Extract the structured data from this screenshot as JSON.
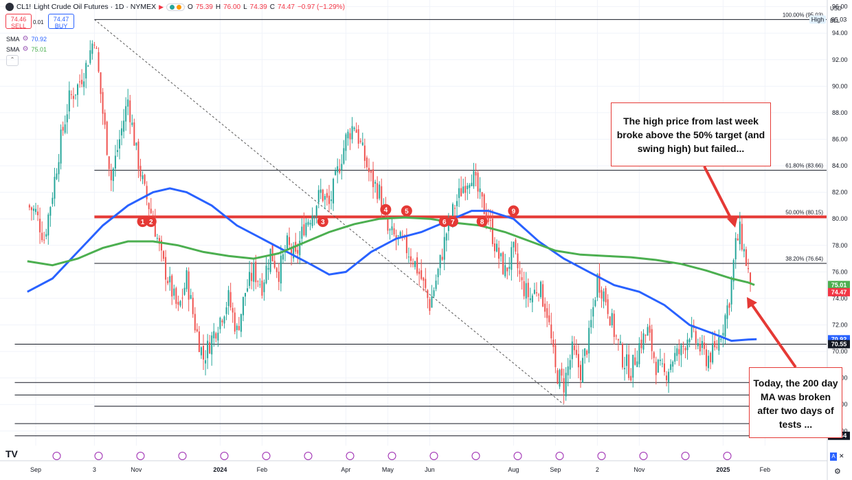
{
  "header": {
    "symbol": "CL1!",
    "title": "Light Crude Oil Futures · 1D · NYMEX",
    "open": "75.39",
    "high": "76.00",
    "low": "74.39",
    "close": "74.47",
    "change": "−0.97 (−1.29%)"
  },
  "trade": {
    "sell_price": "74.46",
    "sell_label": "SELL",
    "spread": "0.01",
    "buy_price": "74.47",
    "buy_label": "BUY"
  },
  "indicators": [
    {
      "label": "SMA",
      "value": "70.92",
      "color": "#2962ff"
    },
    {
      "label": "SMA",
      "value": "75.01",
      "color": "#4caf50"
    }
  ],
  "axis_currency": "USD",
  "axis_unit": "BLL",
  "callouts": {
    "high": "The high price from last week broke above the 50% target (and swing high) but failed...",
    "ma": "Today, the 200 day MA was broken after two days of tests ..."
  },
  "colors": {
    "red": "#e53935",
    "green_ma": "#4caf50",
    "blue_ma": "#2962ff",
    "up": "#26a69a",
    "down": "#ef5350",
    "price_tag": "#f23645"
  },
  "chart_data": {
    "type": "candlestick",
    "ylim": [
      62.9,
      96.5
    ],
    "y_ticks": [
      "96.00",
      "94.00",
      "92.00",
      "90.00",
      "88.00",
      "86.00",
      "84.00",
      "82.00",
      "80.00",
      "78.00",
      "76.00",
      "74.00",
      "72.00",
      "70.00",
      "68.00",
      "66.00",
      "64.00"
    ],
    "x_ticks": [
      {
        "label": "Sep",
        "month": 0
      },
      {
        "label": "3",
        "month": 1.4
      },
      {
        "label": "Nov",
        "month": 2.4
      },
      {
        "label": "2024",
        "month": 4.4
      },
      {
        "label": "Feb",
        "month": 5.4
      },
      {
        "label": "Apr",
        "month": 7.4
      },
      {
        "label": "May",
        "month": 8.4
      },
      {
        "label": "Jun",
        "month": 9.4
      },
      {
        "label": "Aug",
        "month": 11.4
      },
      {
        "label": "Sep",
        "month": 12.4
      },
      {
        "label": "2",
        "month": 13.4
      },
      {
        "label": "Nov",
        "month": 14.4
      },
      {
        "label": "2025",
        "month": 16.4
      },
      {
        "label": "Feb",
        "month": 17.4
      }
    ],
    "close_path": [
      {
        "m": -0.2,
        "v": 81.0
      },
      {
        "m": 0.0,
        "v": 80.5
      },
      {
        "m": 0.2,
        "v": 78.5
      },
      {
        "m": 0.4,
        "v": 82.0
      },
      {
        "m": 0.6,
        "v": 86.0
      },
      {
        "m": 0.8,
        "v": 89.0
      },
      {
        "m": 1.0,
        "v": 90.0
      },
      {
        "m": 1.2,
        "v": 91.5
      },
      {
        "m": 1.4,
        "v": 93.8
      },
      {
        "m": 1.6,
        "v": 88.0
      },
      {
        "m": 1.8,
        "v": 83.0
      },
      {
        "m": 2.0,
        "v": 86.0
      },
      {
        "m": 2.2,
        "v": 89.0
      },
      {
        "m": 2.4,
        "v": 85.0
      },
      {
        "m": 2.6,
        "v": 82.0
      },
      {
        "m": 2.8,
        "v": 80.0
      },
      {
        "m": 3.0,
        "v": 77.0
      },
      {
        "m": 3.2,
        "v": 75.0
      },
      {
        "m": 3.4,
        "v": 73.0
      },
      {
        "m": 3.6,
        "v": 75.5
      },
      {
        "m": 3.8,
        "v": 72.0
      },
      {
        "m": 4.0,
        "v": 69.5
      },
      {
        "m": 4.2,
        "v": 71.0
      },
      {
        "m": 4.4,
        "v": 72.5
      },
      {
        "m": 4.6,
        "v": 74.0
      },
      {
        "m": 4.8,
        "v": 71.5
      },
      {
        "m": 5.0,
        "v": 74.5
      },
      {
        "m": 5.2,
        "v": 76.0
      },
      {
        "m": 5.4,
        "v": 75.0
      },
      {
        "m": 5.6,
        "v": 77.5
      },
      {
        "m": 5.8,
        "v": 76.0
      },
      {
        "m": 6.0,
        "v": 78.0
      },
      {
        "m": 6.2,
        "v": 77.0
      },
      {
        "m": 6.4,
        "v": 79.5
      },
      {
        "m": 6.6,
        "v": 80.5
      },
      {
        "m": 6.8,
        "v": 82.0
      },
      {
        "m": 7.0,
        "v": 81.0
      },
      {
        "m": 7.2,
        "v": 83.5
      },
      {
        "m": 7.4,
        "v": 86.0
      },
      {
        "m": 7.6,
        "v": 87.2
      },
      {
        "m": 7.8,
        "v": 85.0
      },
      {
        "m": 8.0,
        "v": 83.0
      },
      {
        "m": 8.2,
        "v": 82.0
      },
      {
        "m": 8.4,
        "v": 79.0
      },
      {
        "m": 8.6,
        "v": 78.5
      },
      {
        "m": 8.8,
        "v": 78.0
      },
      {
        "m": 9.0,
        "v": 77.0
      },
      {
        "m": 9.2,
        "v": 75.5
      },
      {
        "m": 9.4,
        "v": 73.5
      },
      {
        "m": 9.6,
        "v": 76.0
      },
      {
        "m": 9.8,
        "v": 79.0
      },
      {
        "m": 10.0,
        "v": 81.0
      },
      {
        "m": 10.2,
        "v": 82.5
      },
      {
        "m": 10.4,
        "v": 83.5
      },
      {
        "m": 10.6,
        "v": 81.5
      },
      {
        "m": 10.8,
        "v": 80.0
      },
      {
        "m": 11.0,
        "v": 77.5
      },
      {
        "m": 11.2,
        "v": 76.0
      },
      {
        "m": 11.4,
        "v": 77.5
      },
      {
        "m": 11.6,
        "v": 75.0
      },
      {
        "m": 11.8,
        "v": 74.0
      },
      {
        "m": 12.0,
        "v": 75.0
      },
      {
        "m": 12.2,
        "v": 73.0
      },
      {
        "m": 12.4,
        "v": 68.5
      },
      {
        "m": 12.6,
        "v": 67.5
      },
      {
        "m": 12.8,
        "v": 70.0
      },
      {
        "m": 13.0,
        "v": 68.5
      },
      {
        "m": 13.2,
        "v": 71.0
      },
      {
        "m": 13.4,
        "v": 75.5
      },
      {
        "m": 13.6,
        "v": 74.0
      },
      {
        "m": 13.8,
        "v": 71.5
      },
      {
        "m": 14.0,
        "v": 69.5
      },
      {
        "m": 14.2,
        "v": 68.5
      },
      {
        "m": 14.4,
        "v": 70.5
      },
      {
        "m": 14.6,
        "v": 71.5
      },
      {
        "m": 14.8,
        "v": 69.0
      },
      {
        "m": 15.0,
        "v": 68.2
      },
      {
        "m": 15.2,
        "v": 69.5
      },
      {
        "m": 15.4,
        "v": 70.0
      },
      {
        "m": 15.6,
        "v": 71.5
      },
      {
        "m": 15.8,
        "v": 70.5
      },
      {
        "m": 16.0,
        "v": 69.5
      },
      {
        "m": 16.2,
        "v": 70.0
      },
      {
        "m": 16.4,
        "v": 72.0
      },
      {
        "m": 16.55,
        "v": 74.0
      },
      {
        "m": 16.7,
        "v": 78.0
      },
      {
        "m": 16.8,
        "v": 79.0
      },
      {
        "m": 16.9,
        "v": 77.5
      },
      {
        "m": 17.0,
        "v": 76.0
      },
      {
        "m": 17.05,
        "v": 74.47
      }
    ],
    "series": [
      {
        "name": "SMA",
        "color": "#2962ff",
        "points": [
          {
            "m": -0.2,
            "v": 74.5
          },
          {
            "m": 0.4,
            "v": 75.5
          },
          {
            "m": 1.0,
            "v": 77.5
          },
          {
            "m": 1.6,
            "v": 79.5
          },
          {
            "m": 2.2,
            "v": 81.0
          },
          {
            "m": 2.8,
            "v": 82.0
          },
          {
            "m": 3.2,
            "v": 82.3
          },
          {
            "m": 3.6,
            "v": 82.0
          },
          {
            "m": 4.2,
            "v": 81.0
          },
          {
            "m": 4.8,
            "v": 79.5
          },
          {
            "m": 5.4,
            "v": 78.5
          },
          {
            "m": 6.0,
            "v": 77.5
          },
          {
            "m": 6.6,
            "v": 76.5
          },
          {
            "m": 7.0,
            "v": 75.8
          },
          {
            "m": 7.4,
            "v": 76.0
          },
          {
            "m": 8.0,
            "v": 77.5
          },
          {
            "m": 8.6,
            "v": 78.5
          },
          {
            "m": 9.2,
            "v": 79.0
          },
          {
            "m": 9.8,
            "v": 79.8
          },
          {
            "m": 10.4,
            "v": 80.6
          },
          {
            "m": 10.8,
            "v": 80.6
          },
          {
            "m": 11.4,
            "v": 80.0
          },
          {
            "m": 12.0,
            "v": 78.3
          },
          {
            "m": 12.6,
            "v": 77.0
          },
          {
            "m": 13.2,
            "v": 76.0
          },
          {
            "m": 13.8,
            "v": 75.0
          },
          {
            "m": 14.4,
            "v": 74.5
          },
          {
            "m": 15.0,
            "v": 73.5
          },
          {
            "m": 15.6,
            "v": 72.0
          },
          {
            "m": 16.2,
            "v": 71.3
          },
          {
            "m": 16.6,
            "v": 70.8
          },
          {
            "m": 17.0,
            "v": 70.9
          },
          {
            "m": 17.2,
            "v": 70.92
          }
        ]
      },
      {
        "name": "SMA",
        "color": "#4caf50",
        "points": [
          {
            "m": -0.2,
            "v": 76.8
          },
          {
            "m": 0.4,
            "v": 76.5
          },
          {
            "m": 1.0,
            "v": 77.0
          },
          {
            "m": 1.6,
            "v": 77.8
          },
          {
            "m": 2.2,
            "v": 78.3
          },
          {
            "m": 2.8,
            "v": 78.3
          },
          {
            "m": 3.4,
            "v": 78.0
          },
          {
            "m": 4.0,
            "v": 77.5
          },
          {
            "m": 4.6,
            "v": 77.2
          },
          {
            "m": 5.2,
            "v": 77.0
          },
          {
            "m": 5.8,
            "v": 77.4
          },
          {
            "m": 6.4,
            "v": 78.2
          },
          {
            "m": 7.0,
            "v": 79.0
          },
          {
            "m": 7.6,
            "v": 79.6
          },
          {
            "m": 8.2,
            "v": 80.0
          },
          {
            "m": 8.8,
            "v": 80.1
          },
          {
            "m": 9.4,
            "v": 80.0
          },
          {
            "m": 10.0,
            "v": 79.7
          },
          {
            "m": 10.6,
            "v": 79.5
          },
          {
            "m": 11.2,
            "v": 79.0
          },
          {
            "m": 11.8,
            "v": 78.3
          },
          {
            "m": 12.4,
            "v": 77.6
          },
          {
            "m": 13.0,
            "v": 77.3
          },
          {
            "m": 13.6,
            "v": 77.2
          },
          {
            "m": 14.2,
            "v": 77.1
          },
          {
            "m": 14.8,
            "v": 76.9
          },
          {
            "m": 15.4,
            "v": 76.6
          },
          {
            "m": 16.0,
            "v": 76.1
          },
          {
            "m": 16.6,
            "v": 75.5
          },
          {
            "m": 17.0,
            "v": 75.2
          },
          {
            "m": 17.15,
            "v": 75.01
          }
        ]
      }
    ],
    "levels": [
      {
        "label": "100.00% (95.03)",
        "value": 95.03,
        "from": 1.4,
        "color": "#131722"
      },
      {
        "label": "61.80% (83.66)",
        "value": 83.66,
        "from": 1.4,
        "color": "#131722"
      },
      {
        "label": "50.00% (80.15)",
        "value": 80.15,
        "from": 1.4,
        "color": "#e53935"
      },
      {
        "label": "38.20% (76.64)",
        "value": 76.64,
        "from": 1.4,
        "color": "#131722"
      },
      {
        "label": "",
        "value": 70.55,
        "from": -0.5,
        "color": "#131722"
      },
      {
        "label": "",
        "value": 67.66,
        "from": -0.5,
        "color": "#131722"
      },
      {
        "label": "",
        "value": 66.72,
        "from": -0.5,
        "color": "#131722"
      },
      {
        "label": "",
        "value": 65.87,
        "from": 1.4,
        "color": "#131722"
      },
      {
        "label": "",
        "value": 64.56,
        "from": -0.5,
        "color": "#131722"
      },
      {
        "label": "",
        "value": 63.64,
        "from": -0.5,
        "color": "#131722"
      }
    ],
    "trendline": {
      "from": {
        "m": 1.4,
        "v": 95.03
      },
      "to": {
        "m": 12.6,
        "v": 66.0
      }
    },
    "touches": [
      {
        "label": "1",
        "m": 2.55,
        "v": 79.8
      },
      {
        "label": "2",
        "m": 2.75,
        "v": 79.8
      },
      {
        "label": "3",
        "m": 6.85,
        "v": 79.8
      },
      {
        "label": "4",
        "m": 8.35,
        "v": 80.7
      },
      {
        "label": "5",
        "m": 8.85,
        "v": 80.6
      },
      {
        "label": "6",
        "m": 9.75,
        "v": 79.8
      },
      {
        "label": "7",
        "m": 9.95,
        "v": 79.8
      },
      {
        "label": "8",
        "m": 10.65,
        "v": 79.8
      },
      {
        "label": "9",
        "m": 11.4,
        "v": 80.6
      }
    ],
    "price_labels": [
      {
        "label": "95.03",
        "value": 95.03,
        "bg": "#ffffff",
        "fg": "#131722"
      },
      {
        "label": "High",
        "value": 95.03,
        "bg": "#e3f2fd",
        "fg": "#131722"
      },
      {
        "label": "75.01",
        "value": 75.01,
        "bg": "#4caf50",
        "fg": "#ffffff"
      },
      {
        "label": "74.47",
        "value": 74.47,
        "bg": "#f23645",
        "fg": "#ffffff"
      },
      {
        "label": "70.92",
        "value": 70.92,
        "bg": "#2962ff",
        "fg": "#ffffff"
      },
      {
        "label": "70.55",
        "value": 70.55,
        "bg": "#131722",
        "fg": "#ffffff"
      },
      {
        "label": "63.64",
        "value": 63.64,
        "bg": "#131722",
        "fg": "#ffffff"
      }
    ]
  }
}
